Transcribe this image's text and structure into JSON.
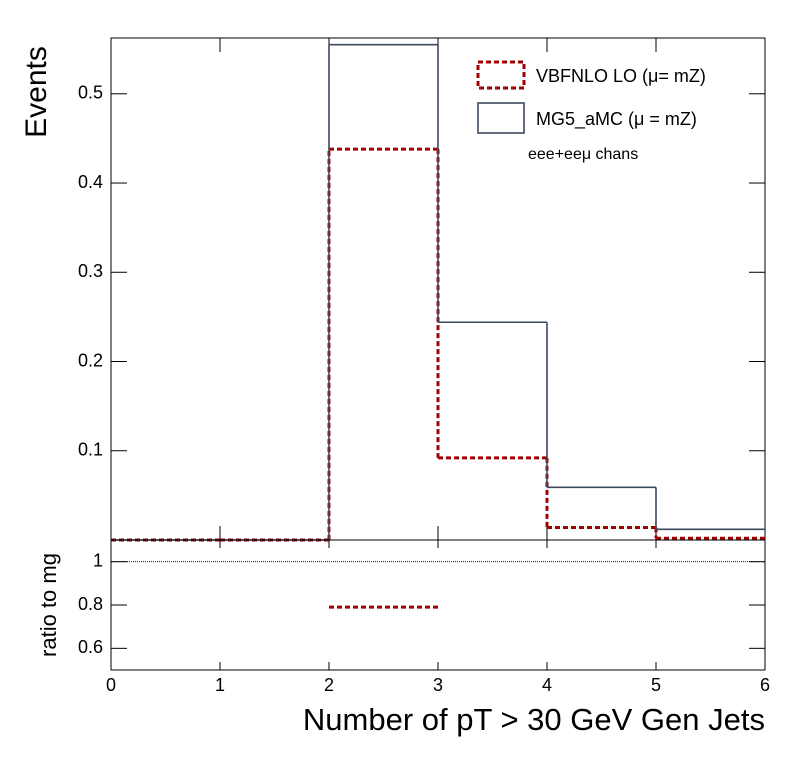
{
  "chart_data": [
    {
      "type": "histogram",
      "y_label": "Events",
      "bins": [
        0,
        1,
        2,
        3,
        4,
        5,
        6
      ],
      "series": [
        {
          "name": "VBFNLO LO (μ= mZ)",
          "color": "#a00000",
          "style": "dashed",
          "values": [
            0,
            0,
            0.438,
            0.092,
            0.014,
            0.002
          ]
        },
        {
          "name": "MG5_aMC (μ = mZ)",
          "color": "#3b4a5e",
          "style": "solid",
          "values": [
            0,
            0,
            0.555,
            0.244,
            0.059,
            0.012
          ]
        }
      ],
      "annotation": "eee+eeμ chans",
      "xlim": [
        0,
        6
      ],
      "ylim": [
        0,
        0.5625
      ],
      "yticks": [
        0.1,
        0.2,
        0.3,
        0.4,
        0.5
      ]
    },
    {
      "type": "histogram",
      "y_label": "ratio to mg",
      "x_label": "Number of pT > 30 GeV Gen Jets",
      "bins": [
        0,
        1,
        2,
        3,
        4,
        5,
        6
      ],
      "series": [
        {
          "name": "VBFNLO LO (μ= mZ)",
          "color": "#a00000",
          "style": "dashed",
          "values": [
            null,
            null,
            0.79,
            null,
            null,
            null
          ]
        }
      ],
      "reference": 1,
      "xlim": [
        0,
        6
      ],
      "ylim": [
        0.5,
        1.1
      ],
      "xticks": [
        0,
        1,
        2,
        3,
        4,
        5,
        6
      ],
      "yticks": [
        0.6,
        0.8,
        1
      ]
    }
  ]
}
